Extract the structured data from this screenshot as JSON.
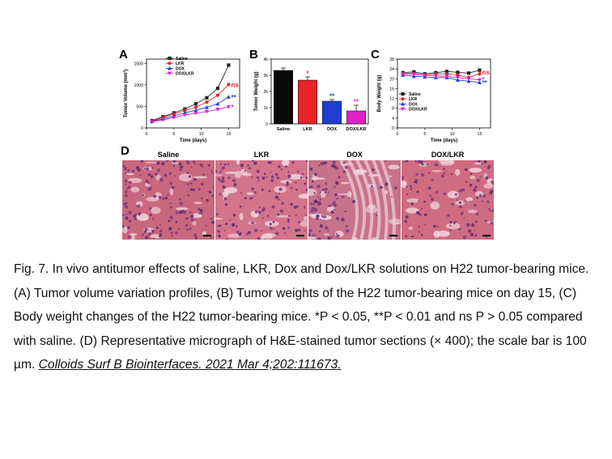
{
  "panels": {
    "A": {
      "label": "A"
    },
    "B": {
      "label": "B"
    },
    "C": {
      "label": "C"
    },
    "D": {
      "label": "D"
    }
  },
  "chart_data": [
    {
      "id": "A",
      "type": "line",
      "xlabel": "Time (days)",
      "ylabel": "Tumor Volume (mm³)",
      "xlim": [
        0,
        17
      ],
      "ylim": [
        0,
        1600
      ],
      "xticks": [
        0,
        5,
        10,
        15
      ],
      "yticks": [
        0,
        500,
        1000,
        1500
      ],
      "x": [
        1,
        3,
        5,
        7,
        9,
        11,
        13,
        15
      ],
      "legend_position": "top-left",
      "series": [
        {
          "name": "Saline",
          "color": "#222222",
          "marker": "square",
          "values": [
            170,
            260,
            350,
            440,
            560,
            700,
            920,
            1460
          ]
        },
        {
          "name": "LKR",
          "color": "#e8232a",
          "marker": "circle",
          "values": [
            160,
            240,
            320,
            400,
            480,
            600,
            760,
            1010
          ]
        },
        {
          "name": "DOX",
          "color": "#1f3fd0",
          "marker": "triangle",
          "values": [
            150,
            210,
            280,
            350,
            410,
            480,
            560,
            720
          ]
        },
        {
          "name": "DOX/LKR",
          "color": "#e020c8",
          "marker": "triangle-down",
          "values": [
            140,
            190,
            240,
            300,
            340,
            380,
            430,
            490
          ]
        }
      ],
      "annotations": [
        {
          "series": "LKR",
          "text": "ns",
          "color": "#e8232a"
        },
        {
          "series": "DOX",
          "text": "**",
          "color": "#1f3fd0"
        },
        {
          "series": "DOX/LKR",
          "text": "*",
          "color": "#e020c8"
        }
      ]
    },
    {
      "id": "B",
      "type": "bar",
      "ylabel": "Tumor Weight (g)",
      "ylim": [
        0,
        4
      ],
      "yticks": [
        0,
        1,
        2,
        3,
        4
      ],
      "ytick_labels": [
        "0",
        "1k",
        "2k",
        "3k",
        "4k"
      ],
      "categories": [
        "Saline",
        "LKR",
        "DOX",
        "DOX/LKR"
      ],
      "values": [
        3.3,
        2.7,
        1.4,
        0.8
      ],
      "errors": [
        0.15,
        0.2,
        0.1,
        0.35
      ],
      "colors": [
        "#0a0a0a",
        "#e8232a",
        "#1f3fd0",
        "#e020c8"
      ],
      "annotations": [
        "",
        "*",
        "**",
        "**"
      ]
    },
    {
      "id": "C",
      "type": "line",
      "xlabel": "Time (days)",
      "ylabel": "Body Weight (g)",
      "xlim": [
        0,
        17
      ],
      "ylim": [
        0,
        28
      ],
      "xticks": [
        0,
        5,
        10,
        15
      ],
      "yticks": [
        0,
        4,
        8,
        12,
        16,
        20,
        24,
        28
      ],
      "x": [
        1,
        3,
        5,
        7,
        9,
        11,
        13,
        15
      ],
      "legend_position": "bottom-left",
      "series": [
        {
          "name": "Saline",
          "color": "#222222",
          "marker": "square",
          "values": [
            22.5,
            22.8,
            22.0,
            22.5,
            23.0,
            22.6,
            22.3,
            23.5
          ]
        },
        {
          "name": "LKR",
          "color": "#e8232a",
          "marker": "circle",
          "values": [
            22.0,
            22.2,
            21.5,
            22.0,
            22.0,
            21.5,
            20.5,
            22.0
          ]
        },
        {
          "name": "DOX",
          "color": "#1f3fd0",
          "marker": "triangle",
          "values": [
            21.5,
            21.0,
            20.8,
            20.5,
            20.5,
            19.5,
            19.0,
            18.5
          ]
        },
        {
          "name": "DOX/LKR",
          "color": "#e020c8",
          "marker": "triangle-down",
          "values": [
            22.0,
            21.8,
            21.5,
            21.2,
            21.0,
            20.5,
            20.0,
            19.5
          ]
        }
      ],
      "annotations": [
        {
          "series": "LKR",
          "text": "ns",
          "color": "#e8232a"
        },
        {
          "series": "DOX/LKR",
          "text": "*",
          "color": "#e020c8"
        },
        {
          "series": "DOX",
          "text": "**",
          "color": "#1f3fd0"
        }
      ]
    }
  ],
  "micrographs": [
    {
      "title": "Saline",
      "base": "#c9677f"
    },
    {
      "title": "LKR",
      "base": "#d2748c"
    },
    {
      "title": "DOX",
      "base": "#c7718a"
    },
    {
      "title": "DOX/LKR",
      "base": "#cf6c82"
    }
  ],
  "caption": {
    "text": "Fig. 7. In vivo antitumor effects of saline, LKR, Dox and Dox/LKR solutions on H22 tumor-bearing mice. (A) Tumor volume variation profiles, (B) Tumor weights of the H22 tumor-bearing mice on day 15, (C) Body weight changes of the H22 tumor-bearing mice. *P < 0.05, **P < 0.01 and ns P > 0.05 compared with saline. (D) Representative micrograph of H&E-stained tumor sections (× 400); the scale bar is 100 µm. ",
    "citation": "Colloids Surf B Biointerfaces. 2021 Mar 4;202:111673."
  }
}
